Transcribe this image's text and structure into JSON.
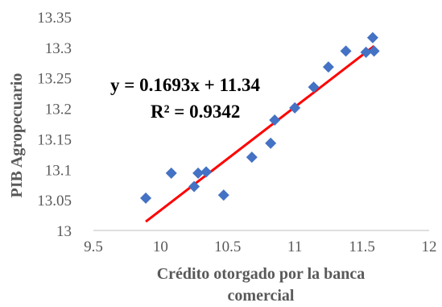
{
  "chart_data": {
    "type": "scatter",
    "xlabel_line1": "Crédito otorgado por la banca",
    "xlabel_line2": "comercial",
    "ylabel": "PIB Agropecuario",
    "xlim": [
      9.5,
      12
    ],
    "ylim": [
      13,
      13.35
    ],
    "x_ticks": [
      "9.5",
      "10",
      "10.5",
      "11",
      "11.5",
      "12"
    ],
    "y_ticks": [
      "13",
      "13.05",
      "13.1",
      "13.15",
      "13.2",
      "13.25",
      "13.3",
      "13.35"
    ],
    "points": [
      {
        "x": 9.89,
        "y": 13.053
      },
      {
        "x": 10.08,
        "y": 13.094
      },
      {
        "x": 10.25,
        "y": 13.072
      },
      {
        "x": 10.28,
        "y": 13.094
      },
      {
        "x": 10.34,
        "y": 13.096
      },
      {
        "x": 10.47,
        "y": 13.058
      },
      {
        "x": 10.68,
        "y": 13.12
      },
      {
        "x": 10.82,
        "y": 13.143
      },
      {
        "x": 10.85,
        "y": 13.181
      },
      {
        "x": 11.0,
        "y": 13.201
      },
      {
        "x": 11.14,
        "y": 13.235
      },
      {
        "x": 11.25,
        "y": 13.268
      },
      {
        "x": 11.38,
        "y": 13.294
      },
      {
        "x": 11.53,
        "y": 13.292
      },
      {
        "x": 11.58,
        "y": 13.316
      },
      {
        "x": 11.59,
        "y": 13.294
      }
    ],
    "trendline": {
      "type": "linear",
      "slope": 0.1693,
      "intercept": 11.34,
      "x_start": 9.89,
      "x_end": 11.59,
      "equation_label": "y = 0.1693x + 11.34",
      "r2_label": "R² = 0.9342"
    },
    "grid": false,
    "colors": {
      "marker": "#4472C4",
      "trendline": "#FF0000",
      "axis": "#BFBFBF",
      "text": "#595959"
    }
  }
}
